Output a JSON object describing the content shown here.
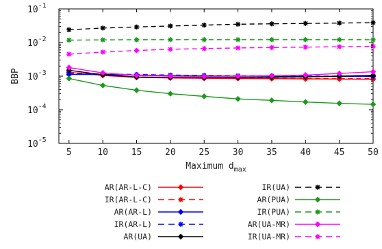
{
  "chart_data": {
    "type": "line",
    "ylabel": "BBP",
    "xlabel": "Maximum d",
    "xlabel_sub": "max",
    "y_scale": "log",
    "ylim": [
      1e-05,
      0.1
    ],
    "xlim": [
      3.5,
      50
    ],
    "grid": false,
    "legend_position": "below",
    "x_ticks": [
      5,
      10,
      15,
      20,
      25,
      30,
      35,
      40,
      45,
      50
    ],
    "y_ticks": [
      {
        "value": 1e-05,
        "base": "10",
        "exp": "-5"
      },
      {
        "value": 0.0001,
        "base": "10",
        "exp": "-4"
      },
      {
        "value": 0.001,
        "base": "10",
        "exp": "-3"
      },
      {
        "value": 0.01,
        "base": "10",
        "exp": "-2"
      },
      {
        "value": 0.1,
        "base": "10",
        "exp": "-1"
      }
    ],
    "x": [
      5,
      10,
      15,
      20,
      25,
      30,
      35,
      40,
      45,
      50
    ],
    "series": [
      {
        "name": "AR(AR-L-C)",
        "color": "#ff0000",
        "dash": "solid",
        "marker": "diamond",
        "values": [
          0.0013,
          0.00105,
          0.00092,
          0.00088,
          0.00086,
          0.00085,
          0.00084,
          0.00083,
          0.00082,
          0.00081
        ]
      },
      {
        "name": "IR(AR-L-C)",
        "color": "#ff0000",
        "dash": "dashed",
        "marker": "star",
        "values": [
          0.00132,
          0.00108,
          0.00095,
          0.0009,
          0.00088,
          0.00087,
          0.00086,
          0.00085,
          0.00085,
          0.00084
        ]
      },
      {
        "name": "AR(AR-L)",
        "color": "#0000ff",
        "dash": "solid",
        "marker": "diamond",
        "values": [
          0.00112,
          0.00112,
          0.00108,
          0.00104,
          0.00102,
          0.001,
          0.00099,
          0.00098,
          0.00098,
          0.00097
        ]
      },
      {
        "name": "IR(AR-L)",
        "color": "#0000ff",
        "dash": "dashed",
        "marker": "star",
        "values": [
          0.00118,
          0.00116,
          0.00112,
          0.00108,
          0.00105,
          0.00103,
          0.00102,
          0.00101,
          0.001,
          0.001
        ]
      },
      {
        "name": "AR(UA)",
        "color": "#000000",
        "dash": "solid",
        "marker": "diamond",
        "values": [
          0.0015,
          0.0011,
          0.00094,
          0.00091,
          0.0009,
          0.00091,
          0.00093,
          0.00095,
          0.001,
          0.00106
        ]
      },
      {
        "name": "IR(UA)",
        "color": "#000000",
        "dash": "dashed",
        "marker": "star",
        "values": [
          0.024,
          0.027,
          0.029,
          0.031,
          0.033,
          0.035,
          0.036,
          0.037,
          0.038,
          0.039
        ]
      },
      {
        "name": "AR(PUA)",
        "color": "#1a9a1a",
        "dash": "solid",
        "marker": "diamond",
        "values": [
          0.00085,
          0.00053,
          0.00038,
          0.0003,
          0.00025,
          0.00021,
          0.00019,
          0.00017,
          0.000155,
          0.000145
        ]
      },
      {
        "name": "IR(PUA)",
        "color": "#1a9a1a",
        "dash": "dashed",
        "marker": "star",
        "values": [
          0.0118,
          0.012,
          0.0121,
          0.0122,
          0.0122,
          0.0122,
          0.0122,
          0.0122,
          0.0122,
          0.0121
        ]
      },
      {
        "name": "AR(UA-MR)",
        "color": "#ff00ff",
        "dash": "solid",
        "marker": "diamond",
        "values": [
          0.0018,
          0.00125,
          0.00105,
          0.001,
          0.00098,
          0.001,
          0.00103,
          0.00108,
          0.0012,
          0.00135
        ]
      },
      {
        "name": "IR(UA-MR)",
        "color": "#ff00ff",
        "dash": "dashed",
        "marker": "star",
        "values": [
          0.0045,
          0.0052,
          0.0058,
          0.0063,
          0.0066,
          0.0069,
          0.0071,
          0.0073,
          0.0075,
          0.0077
        ]
      }
    ],
    "legend_columns": [
      [
        "AR(AR-L-C)",
        "IR(AR-L-C)",
        "AR(AR-L)",
        "IR(AR-L)",
        "AR(UA)"
      ],
      [
        "IR(UA)",
        "AR(PUA)",
        "IR(PUA)",
        "AR(UA-MR)",
        "IR(UA-MR)"
      ]
    ]
  }
}
